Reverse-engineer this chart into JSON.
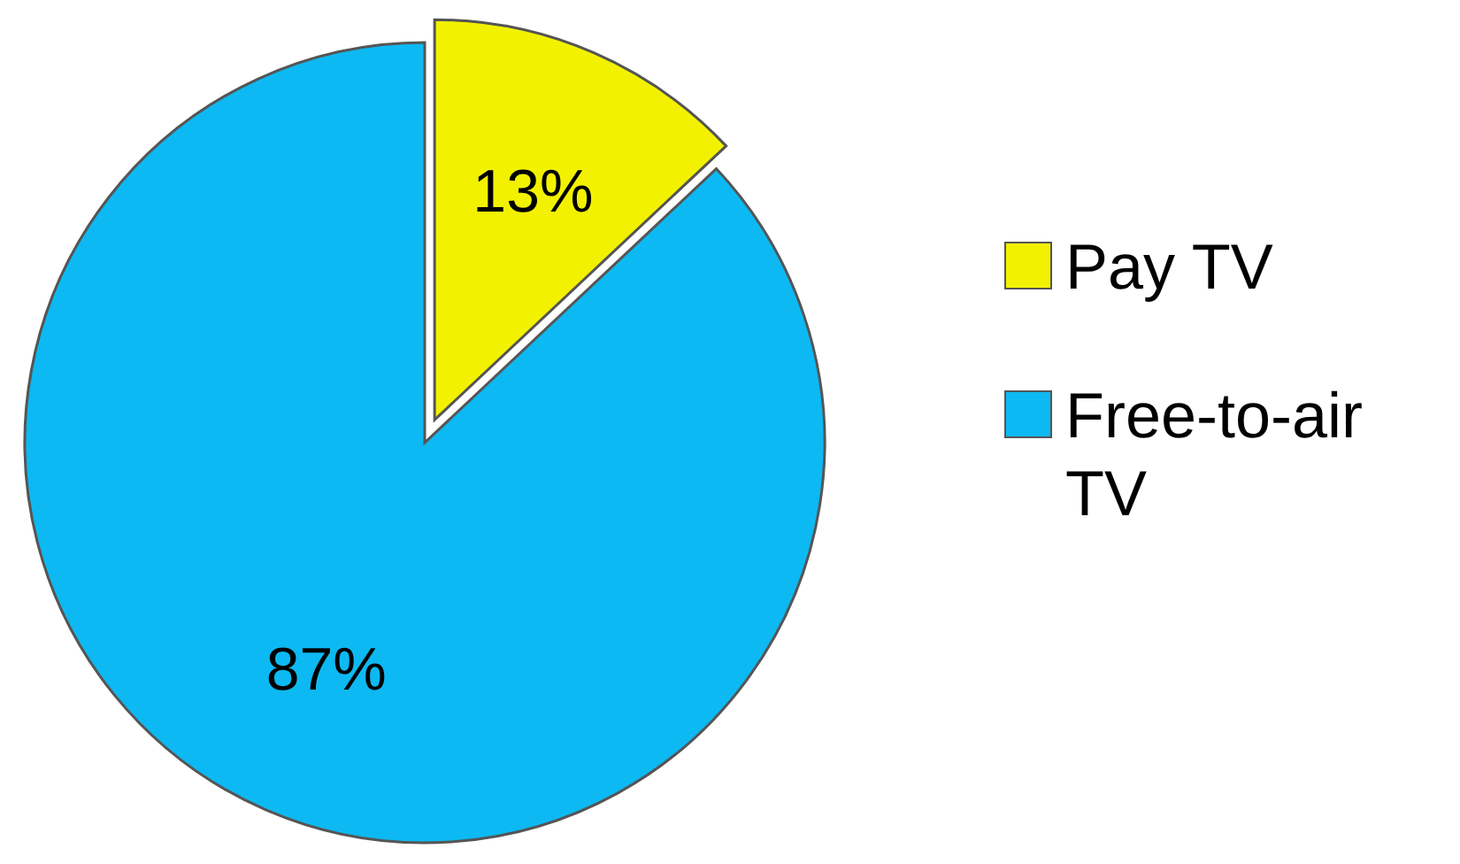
{
  "chart_data": {
    "type": "pie",
    "categories": [
      "Pay TV",
      "Free-to-air TV"
    ],
    "values": [
      13,
      87
    ],
    "colors": [
      "#f2f200",
      "#0db9f2"
    ],
    "value_labels": [
      "13%",
      "87%"
    ],
    "legend": "right"
  }
}
